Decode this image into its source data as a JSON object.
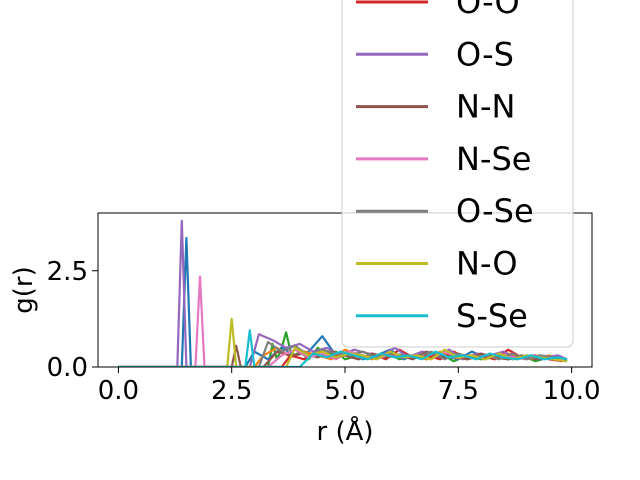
{
  "chart_data": {
    "type": "line",
    "xlabel": "r (Å)",
    "ylabel": "g(r)",
    "xlim": [
      -0.45,
      10.45
    ],
    "ylim": [
      0,
      4.0
    ],
    "xticks": [
      0.0,
      2.5,
      5.0,
      7.5,
      10.0
    ],
    "xtick_labels": [
      "0.0",
      "2.5",
      "5.0",
      "7.5",
      "10.0"
    ],
    "yticks": [
      0.0,
      2.5
    ],
    "ytick_labels": [
      "0.0",
      "2.5"
    ],
    "grid": false,
    "legend_position": "upper-right",
    "legend_entries": [
      {
        "name": "O-O",
        "color": "#d62728"
      },
      {
        "name": "O-S",
        "color": "#9467bd"
      },
      {
        "name": "N-N",
        "color": "#8c564b"
      },
      {
        "name": "N-Se",
        "color": "#e377c2"
      },
      {
        "name": "O-Se",
        "color": "#7f7f7f"
      },
      {
        "name": "N-O",
        "color": "#bcbd22"
      },
      {
        "name": "S-Se",
        "color": "#17becf"
      }
    ],
    "series": [
      {
        "color": "#2ca02c",
        "x": [
          0,
          3.3,
          3.4,
          3.5,
          3.6,
          3.7,
          3.8,
          3.9,
          4.0,
          4.2,
          4.4,
          4.6,
          4.8,
          5.0,
          5.3,
          5.6,
          5.9,
          6.2,
          6.5,
          6.8,
          7.1,
          7.4,
          7.7,
          8.0,
          8.3,
          8.6,
          8.9,
          9.2,
          9.5,
          9.8,
          9.9
        ],
        "y": [
          0,
          0,
          0.6,
          0.2,
          0.5,
          0.9,
          0.4,
          0.3,
          0.4,
          0.2,
          0.5,
          0.3,
          0.4,
          0.2,
          0.3,
          0.25,
          0.4,
          0.2,
          0.3,
          0.2,
          0.35,
          0.15,
          0.3,
          0.2,
          0.25,
          0.2,
          0.3,
          0.15,
          0.25,
          0.2,
          0.15
        ]
      },
      {
        "color": "#1f77b4",
        "x": [
          0,
          1.4,
          1.5,
          1.6,
          2.8,
          3.0,
          3.3,
          3.6,
          3.9,
          4.2,
          4.5,
          4.8,
          5.1,
          5.4,
          5.7,
          6.0,
          6.3,
          6.6,
          6.9,
          7.2,
          7.5,
          7.8,
          8.1,
          8.4,
          8.7,
          9.0,
          9.3,
          9.6,
          9.9
        ],
        "y": [
          0,
          0,
          3.35,
          0,
          0,
          0.4,
          0.2,
          0.5,
          0.3,
          0.4,
          0.8,
          0.3,
          0.4,
          0.2,
          0.3,
          0.45,
          0.2,
          0.35,
          0.25,
          0.3,
          0.2,
          0.4,
          0.25,
          0.3,
          0.2,
          0.3,
          0.2,
          0.25,
          0.2
        ]
      },
      {
        "color": "#ff7f0e",
        "x": [
          0,
          3.0,
          3.2,
          3.5,
          3.8,
          4.1,
          4.4,
          4.7,
          5.0,
          5.3,
          5.6,
          5.9,
          6.2,
          6.5,
          6.8,
          7.1,
          7.4,
          7.7,
          8.0,
          8.3,
          8.6,
          8.9,
          9.2,
          9.5,
          9.8
        ],
        "y": [
          0,
          0,
          0.3,
          0.5,
          0.25,
          0.4,
          0.3,
          0.2,
          0.45,
          0.3,
          0.2,
          0.35,
          0.25,
          0.3,
          0.2,
          0.4,
          0.25,
          0.2,
          0.3,
          0.2,
          0.35,
          0.25,
          0.2,
          0.3,
          0.2
        ]
      },
      {
        "color": "#d62728",
        "x": [
          0,
          3.6,
          3.8,
          4.1,
          4.4,
          4.7,
          5.0,
          5.3,
          5.6,
          5.9,
          6.2,
          6.5,
          6.8,
          7.1,
          7.4,
          7.7,
          8.0,
          8.3,
          8.6,
          8.9,
          9.2,
          9.5,
          9.8
        ],
        "y": [
          0,
          0,
          0.3,
          0.2,
          0.4,
          0.25,
          0.3,
          0.2,
          0.35,
          0.2,
          0.45,
          0.25,
          0.3,
          0.2,
          0.4,
          0.2,
          0.3,
          0.2,
          0.45,
          0.25,
          0.3,
          0.2,
          0.15
        ]
      },
      {
        "color": "#9467bd",
        "x": [
          0,
          1.3,
          1.4,
          1.5,
          2.9,
          3.1,
          3.4,
          3.7,
          4.0,
          4.3,
          4.6,
          4.9,
          5.2,
          5.5,
          5.8,
          6.1,
          6.4,
          6.7,
          7.0,
          7.3,
          7.6,
          7.9,
          8.2,
          8.5,
          8.8,
          9.1,
          9.4,
          9.7,
          9.9
        ],
        "y": [
          0,
          0,
          3.8,
          0,
          0,
          0.85,
          0.7,
          0.5,
          0.6,
          0.4,
          0.5,
          0.3,
          0.45,
          0.35,
          0.3,
          0.5,
          0.25,
          0.4,
          0.3,
          0.45,
          0.2,
          0.35,
          0.3,
          0.4,
          0.2,
          0.3,
          0.25,
          0.3,
          0.2
        ]
      },
      {
        "color": "#8c564b",
        "x": [
          0,
          2.5,
          2.6,
          2.7,
          3.2,
          3.5,
          3.8,
          4.1,
          4.4,
          4.7,
          5.0,
          5.3,
          5.6,
          5.9,
          6.2,
          6.5,
          6.8,
          7.1,
          7.4,
          7.7,
          8.0,
          8.3,
          8.6,
          8.9,
          9.2,
          9.5,
          9.8
        ],
        "y": [
          0,
          0,
          0.55,
          0,
          0,
          0.4,
          0.3,
          0.35,
          0.25,
          0.4,
          0.3,
          0.2,
          0.35,
          0.25,
          0.3,
          0.2,
          0.4,
          0.25,
          0.3,
          0.2,
          0.35,
          0.25,
          0.2,
          0.3,
          0.2,
          0.25,
          0.2
        ]
      },
      {
        "color": "#e377c2",
        "x": [
          0,
          1.7,
          1.8,
          1.9,
          3.3,
          3.6,
          3.9,
          4.2,
          4.5,
          4.8,
          5.1,
          5.4,
          5.7,
          6.0,
          6.3,
          6.6,
          6.9,
          7.2,
          7.5,
          7.8,
          8.1,
          8.4,
          8.7,
          9.0,
          9.3,
          9.6,
          9.9
        ],
        "y": [
          0,
          0,
          2.35,
          0,
          0,
          0.3,
          0.45,
          0.25,
          0.35,
          0.2,
          0.4,
          0.3,
          0.2,
          0.35,
          0.25,
          0.3,
          0.2,
          0.4,
          0.25,
          0.3,
          0.2,
          0.35,
          0.25,
          0.2,
          0.3,
          0.2,
          0.15
        ]
      },
      {
        "color": "#7f7f7f",
        "x": [
          0,
          3.1,
          3.3,
          3.6,
          3.9,
          4.2,
          4.5,
          4.8,
          5.1,
          5.4,
          5.7,
          6.0,
          6.3,
          6.6,
          6.9,
          7.2,
          7.5,
          7.8,
          8.1,
          8.4,
          8.7,
          9.0,
          9.3,
          9.6,
          9.9
        ],
        "y": [
          0,
          0,
          0.65,
          0.4,
          0.55,
          0.3,
          0.45,
          0.35,
          0.3,
          0.4,
          0.25,
          0.35,
          0.3,
          0.25,
          0.4,
          0.2,
          0.35,
          0.25,
          0.3,
          0.2,
          0.35,
          0.2,
          0.3,
          0.25,
          0.2
        ]
      },
      {
        "color": "#bcbd22",
        "x": [
          0,
          2.4,
          2.5,
          2.6,
          3.7,
          3.9,
          4.2,
          4.5,
          4.8,
          5.1,
          5.4,
          5.7,
          6.0,
          6.3,
          6.6,
          6.9,
          7.2,
          7.5,
          7.8,
          8.1,
          8.4,
          8.7,
          9.0,
          9.3,
          9.6,
          9.9
        ],
        "y": [
          0,
          0,
          1.25,
          0,
          0,
          0.5,
          0.3,
          0.4,
          0.25,
          0.35,
          0.3,
          0.2,
          0.4,
          0.25,
          0.3,
          0.2,
          0.45,
          0.25,
          0.3,
          0.2,
          0.35,
          0.2,
          0.3,
          0.25,
          0.2,
          0.15
        ]
      },
      {
        "color": "#17becf",
        "x": [
          0,
          2.8,
          2.9,
          3.0,
          4.0,
          4.3,
          4.6,
          4.9,
          5.2,
          5.5,
          5.8,
          6.1,
          6.4,
          6.7,
          7.0,
          7.3,
          7.6,
          7.9,
          8.2,
          8.5,
          8.8,
          9.1,
          9.4,
          9.7,
          9.9
        ],
        "y": [
          0,
          0,
          0.95,
          0,
          0,
          0.35,
          0.25,
          0.4,
          0.3,
          0.2,
          0.35,
          0.25,
          0.3,
          0.2,
          0.4,
          0.25,
          0.3,
          0.2,
          0.35,
          0.25,
          0.2,
          0.3,
          0.2,
          0.25,
          0.2
        ]
      }
    ]
  }
}
